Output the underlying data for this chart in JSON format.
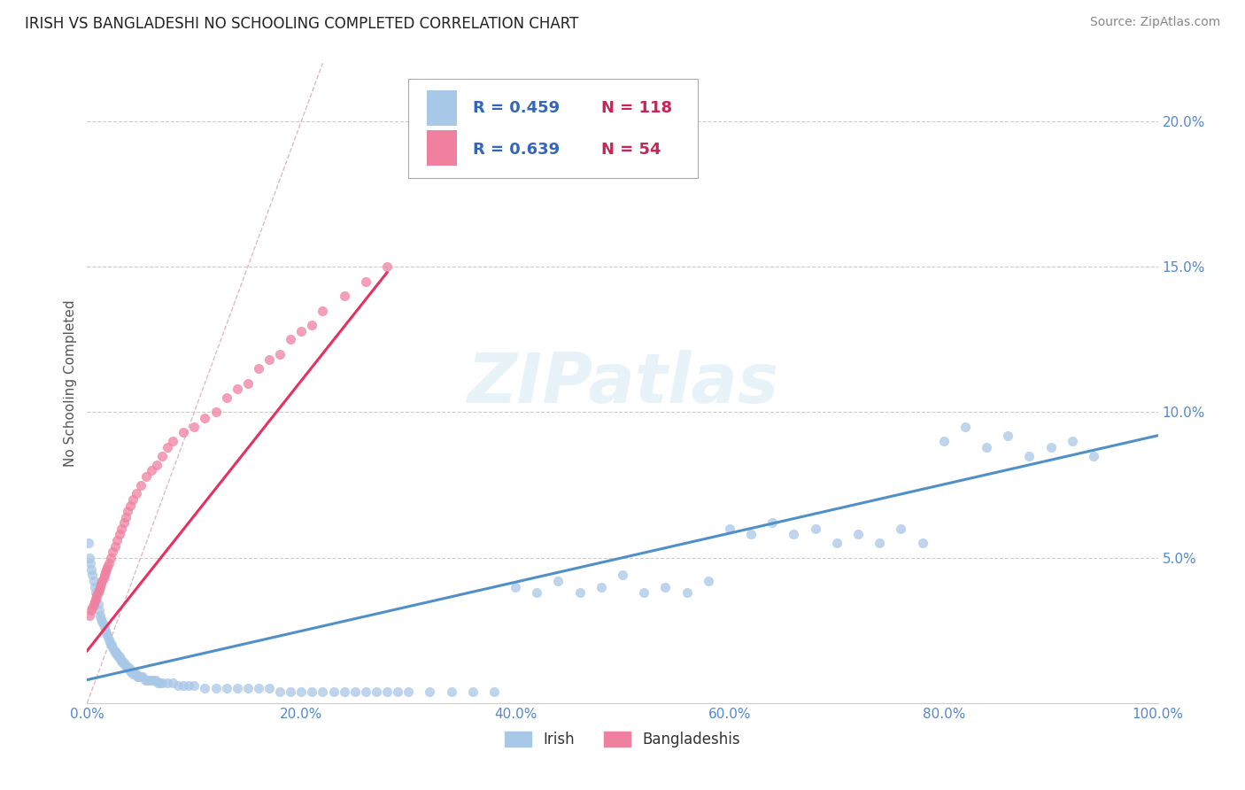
{
  "title": "IRISH VS BANGLADESHI NO SCHOOLING COMPLETED CORRELATION CHART",
  "source": "Source: ZipAtlas.com",
  "ylabel": "No Schooling Completed",
  "watermark": "ZIPatlas",
  "legend_irish": "Irish",
  "legend_bangladeshi": "Bangladeshis",
  "irish_R": "R = 0.459",
  "irish_N": "N = 118",
  "bangladeshi_R": "R = 0.639",
  "bangladeshi_N": "N = 54",
  "irish_color": "#a8c8e8",
  "bangladeshi_color": "#f080a0",
  "irish_trend_color": "#5090c8",
  "bangladeshi_trend_color": "#e83060",
  "diagonal_color": "#e0b0c0",
  "background_color": "#ffffff",
  "tick_color": "#5588cc",
  "xlim": [
    0.0,
    1.0
  ],
  "ylim": [
    0.0,
    0.22
  ],
  "xticks": [
    0.0,
    0.2,
    0.4,
    0.6,
    0.8,
    1.0
  ],
  "yticks": [
    0.0,
    0.05,
    0.1,
    0.15,
    0.2
  ],
  "xtick_labels": [
    "0.0%",
    "20.0%",
    "40.0%",
    "60.0%",
    "80.0%",
    "100.0%"
  ],
  "ytick_labels": [
    "",
    "5.0%",
    "10.0%",
    "15.0%",
    "20.0%"
  ],
  "irish_x": [
    0.001,
    0.002,
    0.003,
    0.004,
    0.005,
    0.006,
    0.007,
    0.008,
    0.009,
    0.01,
    0.011,
    0.012,
    0.013,
    0.014,
    0.015,
    0.016,
    0.017,
    0.018,
    0.019,
    0.02,
    0.021,
    0.022,
    0.023,
    0.024,
    0.025,
    0.026,
    0.027,
    0.028,
    0.029,
    0.03,
    0.031,
    0.032,
    0.033,
    0.034,
    0.035,
    0.036,
    0.037,
    0.038,
    0.039,
    0.04,
    0.041,
    0.042,
    0.043,
    0.044,
    0.045,
    0.046,
    0.047,
    0.048,
    0.049,
    0.05,
    0.052,
    0.054,
    0.056,
    0.058,
    0.06,
    0.062,
    0.064,
    0.066,
    0.068,
    0.07,
    0.075,
    0.08,
    0.085,
    0.09,
    0.095,
    0.1,
    0.11,
    0.12,
    0.13,
    0.14,
    0.15,
    0.16,
    0.17,
    0.18,
    0.19,
    0.2,
    0.21,
    0.22,
    0.23,
    0.24,
    0.25,
    0.26,
    0.27,
    0.28,
    0.29,
    0.3,
    0.32,
    0.34,
    0.36,
    0.38,
    0.4,
    0.42,
    0.44,
    0.46,
    0.48,
    0.5,
    0.52,
    0.54,
    0.56,
    0.58,
    0.6,
    0.62,
    0.64,
    0.66,
    0.68,
    0.7,
    0.72,
    0.74,
    0.76,
    0.78,
    0.8,
    0.82,
    0.84,
    0.86,
    0.88,
    0.9,
    0.92,
    0.94
  ],
  "irish_y": [
    0.055,
    0.05,
    0.048,
    0.046,
    0.044,
    0.042,
    0.04,
    0.038,
    0.036,
    0.034,
    0.032,
    0.03,
    0.029,
    0.028,
    0.027,
    0.026,
    0.025,
    0.024,
    0.023,
    0.022,
    0.021,
    0.02,
    0.02,
    0.019,
    0.018,
    0.018,
    0.017,
    0.017,
    0.016,
    0.016,
    0.015,
    0.015,
    0.014,
    0.014,
    0.013,
    0.013,
    0.012,
    0.012,
    0.012,
    0.011,
    0.011,
    0.011,
    0.01,
    0.01,
    0.01,
    0.01,
    0.009,
    0.009,
    0.009,
    0.009,
    0.009,
    0.008,
    0.008,
    0.008,
    0.008,
    0.008,
    0.008,
    0.007,
    0.007,
    0.007,
    0.007,
    0.007,
    0.006,
    0.006,
    0.006,
    0.006,
    0.005,
    0.005,
    0.005,
    0.005,
    0.005,
    0.005,
    0.005,
    0.004,
    0.004,
    0.004,
    0.004,
    0.004,
    0.004,
    0.004,
    0.004,
    0.004,
    0.004,
    0.004,
    0.004,
    0.004,
    0.004,
    0.004,
    0.004,
    0.004,
    0.04,
    0.038,
    0.042,
    0.038,
    0.04,
    0.044,
    0.038,
    0.04,
    0.038,
    0.042,
    0.06,
    0.058,
    0.062,
    0.058,
    0.06,
    0.055,
    0.058,
    0.055,
    0.06,
    0.055,
    0.09,
    0.095,
    0.088,
    0.092,
    0.085,
    0.088,
    0.09,
    0.085
  ],
  "bangladeshi_x": [
    0.002,
    0.004,
    0.005,
    0.006,
    0.007,
    0.008,
    0.009,
    0.01,
    0.011,
    0.012,
    0.013,
    0.014,
    0.015,
    0.016,
    0.017,
    0.018,
    0.019,
    0.02,
    0.022,
    0.024,
    0.026,
    0.028,
    0.03,
    0.032,
    0.034,
    0.036,
    0.038,
    0.04,
    0.043,
    0.046,
    0.05,
    0.055,
    0.06,
    0.065,
    0.07,
    0.075,
    0.08,
    0.09,
    0.1,
    0.11,
    0.12,
    0.13,
    0.14,
    0.15,
    0.16,
    0.17,
    0.18,
    0.19,
    0.2,
    0.21,
    0.22,
    0.24,
    0.26,
    0.28
  ],
  "bangladeshi_y": [
    0.03,
    0.032,
    0.033,
    0.034,
    0.035,
    0.036,
    0.037,
    0.038,
    0.039,
    0.04,
    0.041,
    0.042,
    0.043,
    0.044,
    0.045,
    0.046,
    0.047,
    0.048,
    0.05,
    0.052,
    0.054,
    0.056,
    0.058,
    0.06,
    0.062,
    0.064,
    0.066,
    0.068,
    0.07,
    0.072,
    0.075,
    0.078,
    0.08,
    0.082,
    0.085,
    0.088,
    0.09,
    0.093,
    0.095,
    0.098,
    0.1,
    0.105,
    0.108,
    0.11,
    0.115,
    0.118,
    0.12,
    0.125,
    0.128,
    0.13,
    0.135,
    0.14,
    0.145,
    0.15
  ]
}
